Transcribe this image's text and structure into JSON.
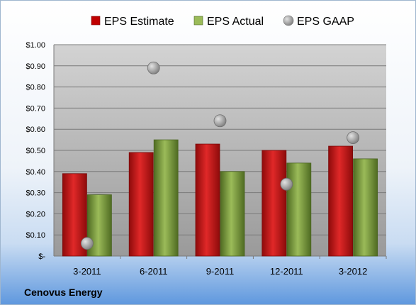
{
  "chart_data": {
    "type": "bar",
    "categories": [
      "3-2011",
      "6-2011",
      "9-2011",
      "12-2011",
      "3-2012"
    ],
    "series": [
      {
        "name": "EPS Estimate",
        "kind": "bar",
        "values": [
          0.39,
          0.49,
          0.53,
          0.5,
          0.52
        ],
        "color": "#c00000"
      },
      {
        "name": "EPS Actual",
        "kind": "bar",
        "values": [
          0.29,
          0.55,
          0.4,
          0.44,
          0.46
        ],
        "color": "#76923c"
      },
      {
        "name": "EPS GAAP",
        "kind": "marker",
        "values": [
          0.06,
          0.89,
          0.64,
          0.34,
          0.56
        ],
        "color": "#a6a6a6"
      }
    ],
    "ylim": [
      0,
      1.0
    ],
    "yticks": [
      0,
      0.1,
      0.2,
      0.3,
      0.4,
      0.5,
      0.6,
      0.7,
      0.8,
      0.9,
      1.0
    ],
    "ytick_labels": [
      "$-",
      "$0.10",
      "$0.20",
      "$0.30",
      "$0.40",
      "$0.50",
      "$0.60",
      "$0.70",
      "$0.80",
      "$0.90",
      "$1.00"
    ],
    "grid": true,
    "legend": "top"
  },
  "footer": {
    "company": "Cenovus Energy"
  }
}
